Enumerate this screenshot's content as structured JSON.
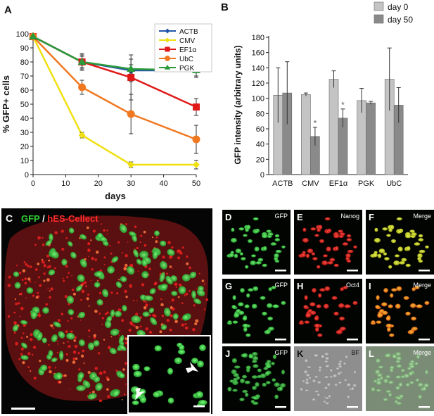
{
  "panel_letters": {
    "a": "A",
    "b": "B",
    "c": "C",
    "d": "D",
    "e": "E",
    "f": "F",
    "g": "G",
    "h": "H",
    "i": "I",
    "j": "J",
    "k": "K",
    "l": "L"
  },
  "panel_c": {
    "label_gfp": "GFP",
    "label_sep": " / ",
    "label_hes": "hES-Cellect",
    "color_gfp": "#33cc33",
    "color_hes": "#ff2a2a"
  },
  "micro_labels": {
    "d": "GFP",
    "e": "Nanog",
    "f": "Merge",
    "g": "GFP",
    "h": "Oct4",
    "i": "Merge",
    "j": "GFP",
    "k": "BF",
    "l": "Merge"
  },
  "chart_data": [
    {
      "type": "line",
      "xlabel": "days",
      "ylabel": "% GFP+ cells",
      "xlim": [
        0,
        50
      ],
      "ylim": [
        0,
        100
      ],
      "xticks": [
        0,
        10,
        20,
        30,
        40,
        50
      ],
      "yticks": [
        0,
        10,
        20,
        30,
        40,
        50,
        60,
        70,
        80,
        90,
        100
      ],
      "x": [
        0,
        15,
        30,
        50
      ],
      "legend_position": "top-right",
      "series": [
        {
          "name": "ACTB",
          "color": "#2255aa",
          "marker": "diamond",
          "values": [
            98,
            80,
            74,
            74
          ],
          "err": [
            0,
            4,
            8,
            4
          ]
        },
        {
          "name": "CMV",
          "color": "#f0e010",
          "marker": "diamond",
          "values": [
            98,
            28,
            7,
            7
          ],
          "err": [
            0,
            2,
            2,
            3
          ]
        },
        {
          "name": "EF1α",
          "color": "#e01818",
          "marker": "square",
          "values": [
            98,
            80,
            69,
            48
          ],
          "err": [
            0,
            5,
            16,
            6
          ]
        },
        {
          "name": "UbC",
          "color": "#f07820",
          "marker": "circle",
          "values": [
            98,
            62,
            43,
            25
          ],
          "err": [
            0,
            5,
            14,
            10
          ]
        },
        {
          "name": "PGK",
          "color": "#2a9a3a",
          "marker": "triangle",
          "values": [
            98,
            80,
            75,
            74
          ],
          "err": [
            0,
            6,
            3,
            5
          ]
        }
      ]
    },
    {
      "type": "bar",
      "ylabel": "GFP intensity (arbitrary units)",
      "ylim": [
        0,
        180
      ],
      "yticks": [
        0,
        20,
        40,
        60,
        80,
        100,
        120,
        140,
        160,
        180
      ],
      "categories": [
        "ACTB",
        "CMV",
        "EF1α",
        "PGK",
        "UbC"
      ],
      "legend_position": "top-right",
      "series": [
        {
          "name": "day 0",
          "color": "#c4c4c4",
          "values": [
            104,
            105,
            125,
            97,
            125
          ],
          "err": [
            36,
            2,
            11,
            16,
            41
          ]
        },
        {
          "name": "day 50",
          "color": "#8a8a8a",
          "values": [
            107,
            50,
            74,
            94,
            91
          ],
          "err": [
            41,
            12,
            12,
            2,
            23
          ]
        }
      ],
      "annotations": [
        {
          "category": "CMV",
          "series": "day 50",
          "text": "*"
        },
        {
          "category": "EF1α",
          "series": "day 50",
          "text": "*"
        }
      ]
    }
  ]
}
